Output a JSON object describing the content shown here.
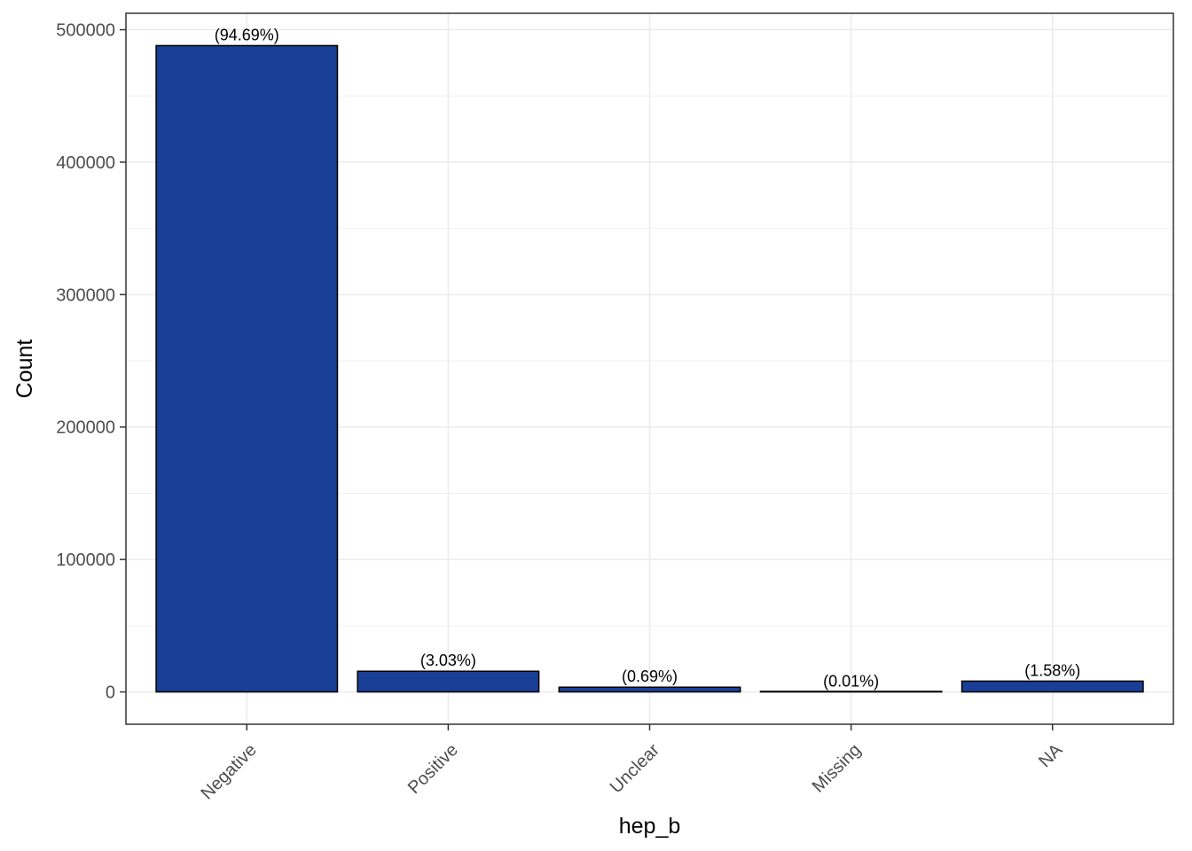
{
  "chart_data": {
    "type": "bar",
    "title": "",
    "xlabel": "hep_b",
    "ylabel": "Count",
    "categories": [
      "Negative",
      "Positive",
      "Unclear",
      "Missing",
      "NA"
    ],
    "values": [
      488000,
      15600,
      3560,
      52,
      8140
    ],
    "data_labels": [
      "(94.69%)",
      "(3.03%)",
      "(0.69%)",
      "(0.01%)",
      "(1.58%)"
    ],
    "yticks": [
      0,
      100000,
      200000,
      300000,
      400000,
      500000
    ],
    "ytick_labels": [
      "0",
      "100000",
      "200000",
      "300000",
      "400000",
      "500000"
    ],
    "ylim": [
      -24400,
      512400
    ],
    "grid": true,
    "legend": "none",
    "bar_color": "#193F96",
    "bar_edge_color": "#000000"
  }
}
